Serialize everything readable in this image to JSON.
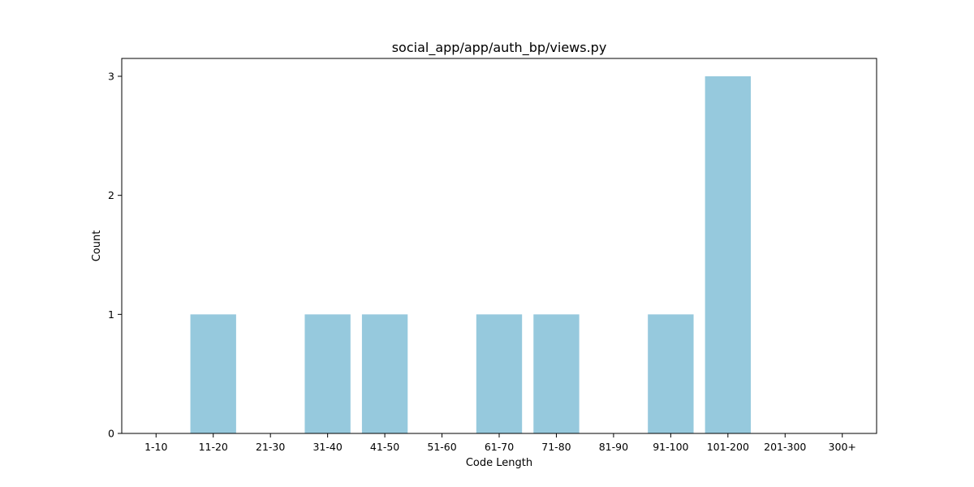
{
  "chart_data": {
    "type": "bar",
    "title": "social_app/app/auth_bp/views.py",
    "xlabel": "Code Length",
    "ylabel": "Count",
    "categories": [
      "1-10",
      "11-20",
      "21-30",
      "31-40",
      "41-50",
      "51-60",
      "61-70",
      "71-80",
      "81-90",
      "91-100",
      "101-200",
      "201-300",
      "300+"
    ],
    "values": [
      0,
      1,
      0,
      1,
      1,
      0,
      1,
      1,
      0,
      1,
      3,
      0,
      0
    ],
    "ylim": [
      0,
      3.15
    ],
    "yticks": [
      0,
      1,
      2,
      3
    ],
    "bar_color": "#96c9dd",
    "grid": false,
    "legend": false
  }
}
